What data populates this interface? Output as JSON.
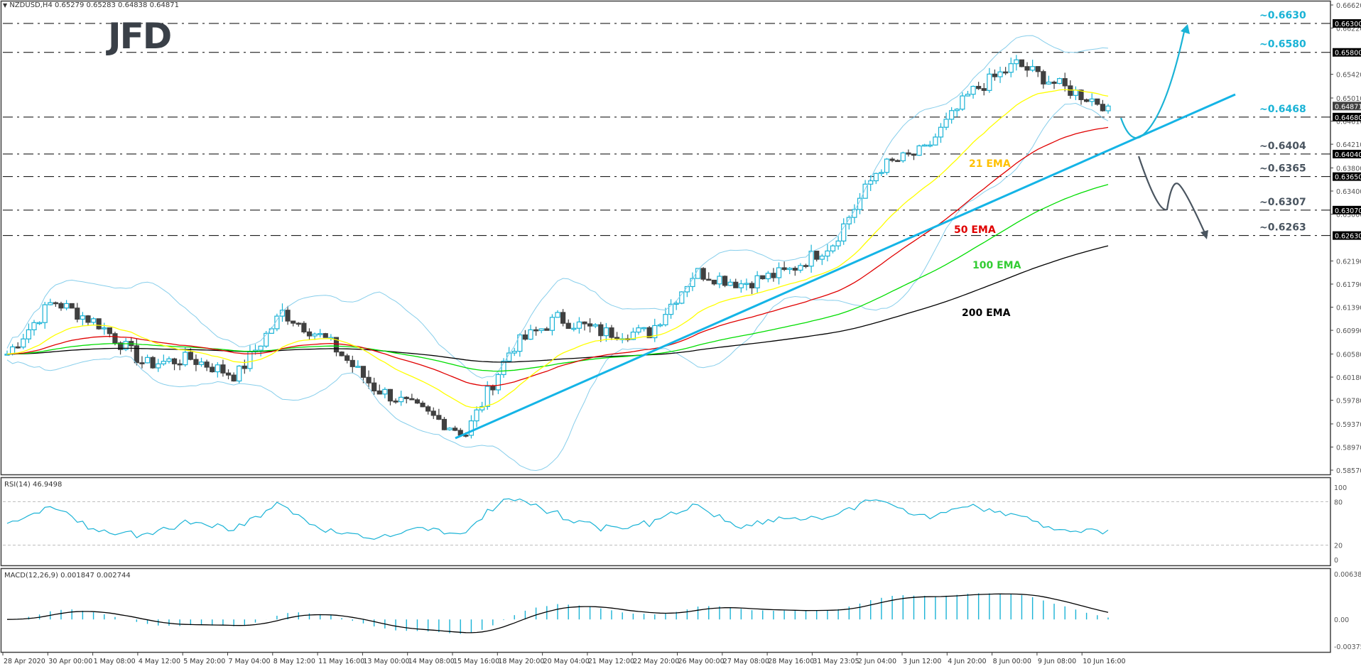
{
  "header": {
    "symbol_line": "NZDUSD,H4  0.65279 0.65283 0.64838 0.64871",
    "symbol": "NZDUSD",
    "timeframe": "H4",
    "open": "0.65279",
    "high": "0.65283",
    "low": "0.64838",
    "close": "0.64871"
  },
  "logo": {
    "text": "JFD",
    "color": "#3a4048"
  },
  "colors": {
    "bull_candle": "#1ab3d6",
    "bear_candle": "#404040",
    "bollinger": "#87ceeb",
    "ema21": "#ffff00",
    "ema50": "#e00000",
    "ema100": "#00dd00",
    "ema200": "#000000",
    "trendline": "#14b4e6",
    "bull_scenario": "#1ab3d6",
    "bear_scenario": "#4a5560",
    "level_label_up": "#1ab3d6",
    "level_label_down": "#4a5560",
    "rsi_line": "#1ab3d6",
    "macd_hist": "#1ab3d6",
    "macd_signal": "#000000"
  },
  "price_axis": {
    "ticks": [
      "0.66620",
      "0.66220",
      "0.65420",
      "0.65010",
      "0.64610",
      "0.64210",
      "0.63800",
      "0.63400",
      "0.63000",
      "0.62190",
      "0.61790",
      "0.61390",
      "0.60990",
      "0.60580",
      "0.60180",
      "0.59780",
      "0.59370",
      "0.58970",
      "0.58570"
    ],
    "current_price": "0.64871",
    "level_tags": [
      "0.66300",
      "0.65800",
      "0.64680",
      "0.64040",
      "0.63650",
      "0.63070",
      "0.62630"
    ]
  },
  "levels": [
    {
      "label": "~0.6630",
      "tag": "0.66300",
      "kind": "up"
    },
    {
      "label": "~0.6580",
      "tag": "0.65800",
      "kind": "up"
    },
    {
      "label": "~0.6468",
      "tag": "0.64680",
      "kind": "up"
    },
    {
      "label": "~0.6404",
      "tag": "0.64040",
      "kind": "down"
    },
    {
      "label": "~0.6365",
      "tag": "0.63650",
      "kind": "down"
    },
    {
      "label": "~0.6307",
      "tag": "0.63070",
      "kind": "down"
    },
    {
      "label": "~0.6263",
      "tag": "0.62630",
      "kind": "down"
    }
  ],
  "ema_labels": {
    "ema21": "21 EMA",
    "ema50": "50 EMA",
    "ema100": "100 EMA",
    "ema200": "200 EMA"
  },
  "rsi": {
    "title": "RSI(14) 46.9498",
    "ticks": [
      "100",
      "80",
      "20",
      "0"
    ]
  },
  "macd": {
    "title": "MACD(12,26,9) 0.001847 0.002744",
    "ticks": [
      "0.006385",
      "0.00",
      "-0.003757"
    ]
  },
  "time_axis": {
    "labels": [
      "28 Apr 2020",
      "30 Apr 00:00",
      "1 May 08:00",
      "4 May 12:00",
      "5 May 20:00",
      "7 May 04:00",
      "8 May 12:00",
      "11 May 16:00",
      "13 May 00:00",
      "14 May 08:00",
      "15 May 16:00",
      "18 May 20:00",
      "20 May 04:00",
      "21 May 12:00",
      "22 May 20:00",
      "26 May 00:00",
      "27 May 08:00",
      "28 May 16:00",
      "31 May 23:05",
      "2 Jun 04:00",
      "3 Jun 12:00",
      "4 Jun 20:00",
      "8 Jun 00:00",
      "9 Jun 08:00",
      "10 Jun 16:00"
    ]
  },
  "chart_data": {
    "type": "candlestick",
    "title": "NZDUSD, H4",
    "instrument": "NZDUSD",
    "last_bar": {
      "open": 0.65279,
      "high": 0.65283,
      "low": 0.64838,
      "close": 0.64871
    },
    "x_categories": [
      "28 Apr 2020",
      "30 Apr 00:00",
      "1 May 08:00",
      "4 May 12:00",
      "5 May 20:00",
      "7 May 04:00",
      "8 May 12:00",
      "11 May 16:00",
      "13 May 00:00",
      "14 May 08:00",
      "15 May 16:00",
      "18 May 20:00",
      "20 May 04:00",
      "21 May 12:00",
      "22 May 20:00",
      "26 May 00:00",
      "27 May 08:00",
      "28 May 16:00",
      "31 May 23:05",
      "2 Jun 04:00",
      "3 Jun 12:00",
      "4 Jun 20:00",
      "8 Jun 00:00",
      "9 Jun 08:00",
      "10 Jun 16:00"
    ],
    "ylim": [
      0.5857,
      0.6662
    ],
    "approx_close_path": [
      0.6058,
      0.615,
      0.611,
      0.604,
      0.605,
      0.602,
      0.613,
      0.608,
      0.6,
      0.596,
      0.592,
      0.607,
      0.612,
      0.6095,
      0.6095,
      0.62,
      0.618,
      0.62,
      0.625,
      0.638,
      0.641,
      0.651,
      0.656,
      0.652,
      0.6487
    ],
    "horizontal_levels": [
      0.663,
      0.658,
      0.6468,
      0.6404,
      0.6365,
      0.6307,
      0.6263
    ],
    "series": [
      {
        "name": "21 EMA",
        "end_value": 0.652
      },
      {
        "name": "50 EMA",
        "end_value": 0.643
      },
      {
        "name": "100 EMA",
        "end_value": 0.634
      },
      {
        "name": "200 EMA",
        "end_value": 0.6235
      }
    ],
    "trendline": {
      "from": [
        "15 May 16:00",
        0.592
      ],
      "to": [
        "10 Jun 16:00+",
        0.651
      ]
    },
    "scenarios": [
      {
        "name": "bullish",
        "path": "dip to ~0.6440 trendline then rally to ~0.6630"
      },
      {
        "name": "bearish",
        "path": "break below trendline, fall to ~0.6307, bounce ~0.6365, drop to ~0.6263"
      }
    ],
    "indicators": {
      "rsi14": {
        "value": 46.9498,
        "levels": [
          80,
          20
        ],
        "ylim": [
          0,
          100
        ]
      },
      "macd": {
        "params": [
          12,
          26,
          9
        ],
        "main": 0.001847,
        "signal": 0.002744,
        "ylim": [
          -0.003757,
          0.006385
        ]
      }
    },
    "grid": false
  }
}
